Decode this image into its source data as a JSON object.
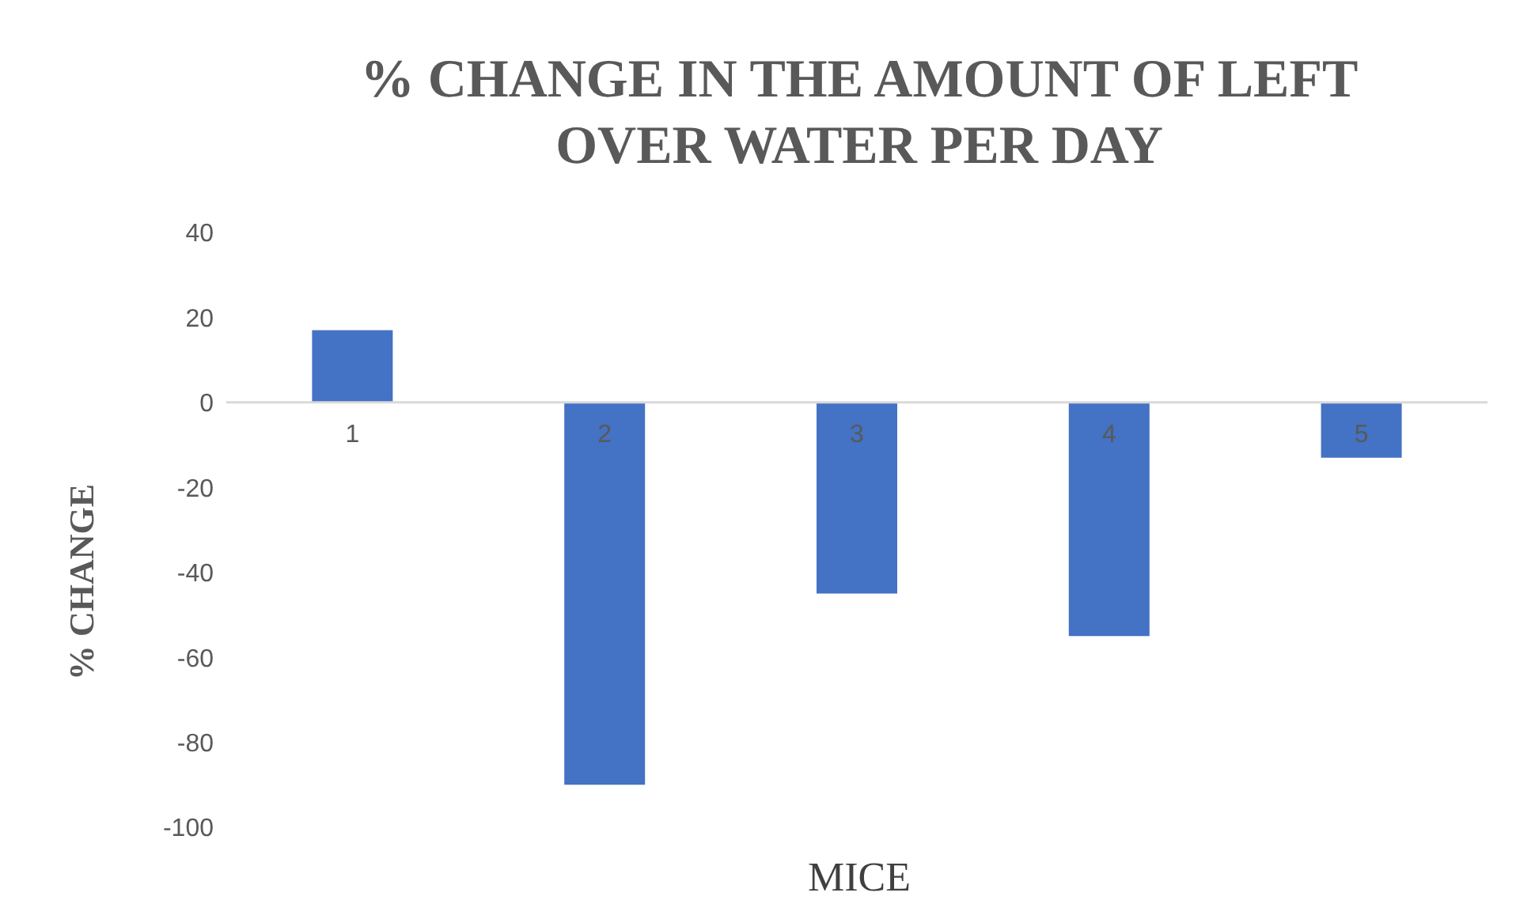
{
  "chart_data": {
    "type": "bar",
    "title": "% CHANGE IN THE AMOUNT OF LEFT OVER WATER PER DAY",
    "xlabel": "MICE",
    "ylabel": "% CHANGE",
    "categories": [
      "1",
      "2",
      "3",
      "4",
      "5"
    ],
    "values": [
      17,
      -90,
      -45,
      -55,
      -13
    ],
    "color": "#4472c4",
    "ylim": [
      -100,
      40
    ],
    "yticks": [
      -100,
      -80,
      -60,
      -40,
      -20,
      0,
      20,
      40
    ],
    "grid": false
  }
}
